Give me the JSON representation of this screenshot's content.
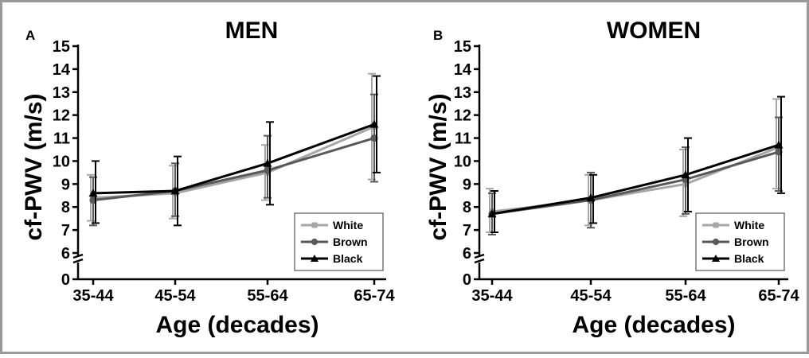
{
  "chart_data": [
    {
      "type": "line",
      "panel_letter": "A",
      "title": "MEN",
      "xlabel": "Age (decades)",
      "ylabel": "cf-PWV (m/s)",
      "categories": [
        "35-44",
        "45-54",
        "55-64",
        "65-74"
      ],
      "y_ticks": [
        "0",
        "6",
        "7",
        "8",
        "9",
        "10",
        "11",
        "12",
        "13",
        "14",
        "15"
      ],
      "axis_break": "between 0 and 6",
      "ylim": [
        6,
        15
      ],
      "legend_position": "bottom-right",
      "series": [
        {
          "name": "White",
          "color": "#a6a6a6",
          "marker": "square",
          "values": [
            8.4,
            8.6,
            9.5,
            11.5
          ],
          "err_low": [
            7.4,
            7.5,
            8.3,
            9.2
          ],
          "err_high": [
            9.4,
            9.8,
            10.7,
            13.8
          ]
        },
        {
          "name": "Brown",
          "color": "#595959",
          "marker": "circle",
          "values": [
            8.3,
            8.7,
            9.6,
            11.0
          ],
          "err_low": [
            7.2,
            7.6,
            8.4,
            9.1
          ],
          "err_high": [
            9.3,
            9.9,
            11.1,
            12.9
          ]
        },
        {
          "name": "Black",
          "color": "#000000",
          "marker": "triangle",
          "values": [
            8.6,
            8.7,
            9.9,
            11.6
          ],
          "err_low": [
            7.3,
            7.2,
            8.1,
            9.5
          ],
          "err_high": [
            10.0,
            10.2,
            11.7,
            13.7
          ]
        }
      ]
    },
    {
      "type": "line",
      "panel_letter": "B",
      "title": "WOMEN",
      "xlabel": "Age (decades)",
      "ylabel": "cf-PWV (m/s)",
      "categories": [
        "35-44",
        "45-54",
        "55-64",
        "65-74"
      ],
      "y_ticks": [
        "0",
        "6",
        "7",
        "8",
        "9",
        "10",
        "11",
        "12",
        "13",
        "14",
        "15"
      ],
      "axis_break": "between 0 and 6",
      "ylim": [
        6,
        15
      ],
      "legend_position": "bottom-right",
      "series": [
        {
          "name": "White",
          "color": "#a6a6a6",
          "marker": "square",
          "values": [
            7.8,
            8.3,
            9.0,
            10.6
          ],
          "err_low": [
            6.9,
            7.2,
            7.6,
            8.8
          ],
          "err_high": [
            8.8,
            9.4,
            10.5,
            12.7
          ]
        },
        {
          "name": "Brown",
          "color": "#595959",
          "marker": "circle",
          "values": [
            7.7,
            8.3,
            9.2,
            10.4
          ],
          "err_low": [
            6.8,
            7.1,
            7.7,
            8.7
          ],
          "err_high": [
            8.6,
            9.5,
            10.6,
            11.9
          ]
        },
        {
          "name": "Black",
          "color": "#000000",
          "marker": "triangle",
          "values": [
            7.7,
            8.4,
            9.4,
            10.7
          ],
          "err_low": [
            6.9,
            7.3,
            7.8,
            8.6
          ],
          "err_high": [
            8.7,
            9.4,
            11.0,
            12.8
          ]
        }
      ]
    }
  ]
}
